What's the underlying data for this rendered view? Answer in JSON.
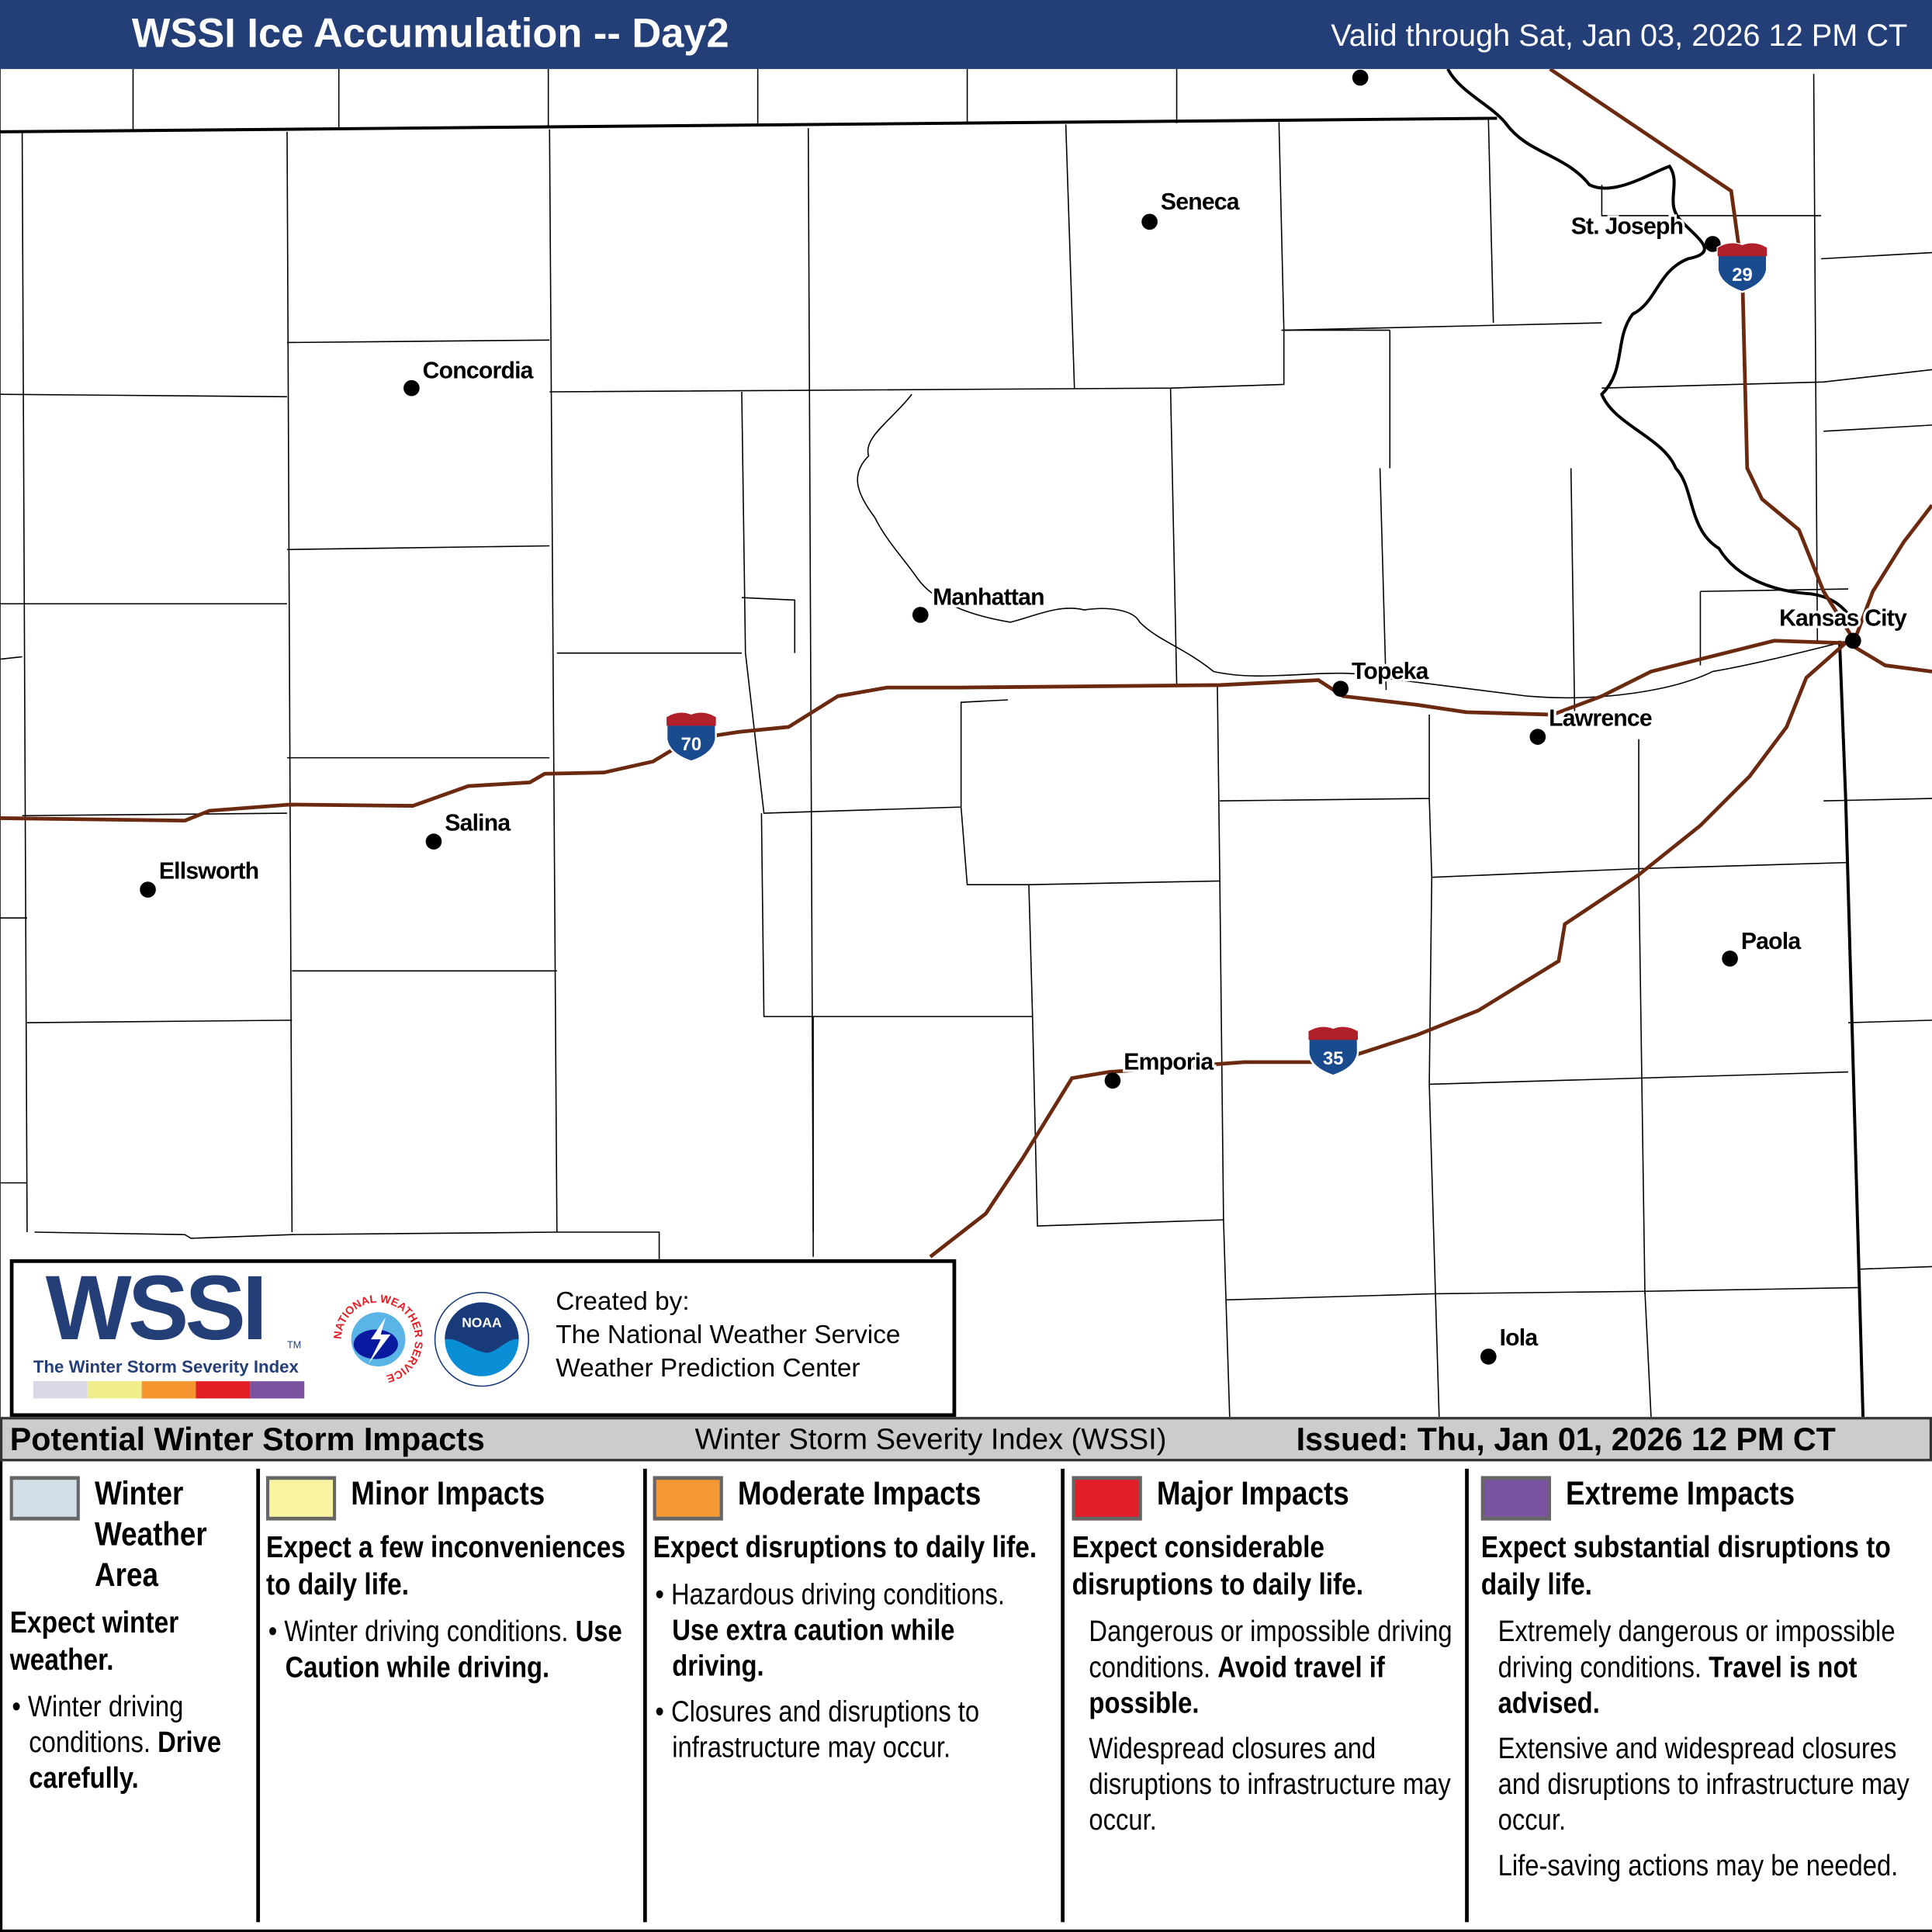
{
  "header": {
    "title": "WSSI Ice Accumulation -- Day2",
    "valid": "Valid through Sat, Jan 03, 2026 12 PM CT",
    "bg_color": "#243f78"
  },
  "map": {
    "cities": [
      {
        "name": "Seneca"
      },
      {
        "name": "St. Joseph"
      },
      {
        "name": "Concordia"
      },
      {
        "name": "Manhattan"
      },
      {
        "name": "Topeka"
      },
      {
        "name": "Kansas City"
      },
      {
        "name": "Lawrence"
      },
      {
        "name": "Salina"
      },
      {
        "name": "Ellsworth"
      },
      {
        "name": "Paola"
      },
      {
        "name": "Emporia"
      },
      {
        "name": "Iola"
      }
    ],
    "interstates": [
      {
        "number": "70"
      },
      {
        "number": "29"
      },
      {
        "number": "35"
      }
    ],
    "interstate_color": "#6b2a10"
  },
  "logo": {
    "wssi": "WSSI",
    "tm": "TM",
    "subtitle": "The Winter Storm Severity Index",
    "bar_colors": [
      "#d8d8e6",
      "#f0ee8a",
      "#f5962e",
      "#e31e25",
      "#7b52a0"
    ],
    "nws_ring_text": "NATIONAL WEATHER SERVICE",
    "noaa_text": "NOAA",
    "created_by": "Created by:",
    "org1": "The National Weather Service",
    "org2": "Weather Prediction Center"
  },
  "legend_bar": {
    "left": "Potential Winter Storm Impacts",
    "middle": "Winter Storm Severity Index (WSSI)",
    "issued": "Issued: Thu, Jan 01, 2026 12 PM CT"
  },
  "legend": [
    {
      "color": "#d3dfe6",
      "title_lines": [
        "Winter",
        "Weather",
        "Area"
      ],
      "headline": "Expect winter weather.",
      "b1_plain": "Winter driving conditions.",
      "b1_bold": "Drive carefully."
    },
    {
      "color": "#f8f4a2",
      "title": "Minor Impacts",
      "headline": "Expect a few inconveniences to daily life.",
      "b1_plain": "Winter driving conditions.",
      "b1_bold": "Use Caution while driving."
    },
    {
      "color": "#f59733",
      "title": "Moderate Impacts",
      "headline": "Expect disruptions to daily life.",
      "b1_plain": "Hazardous driving conditions.",
      "b1_bold": "Use extra caution while driving.",
      "b2": "Closures and disruptions to infrastructure may occur."
    },
    {
      "color": "#e41e26",
      "title": "Major Impacts",
      "headline": "Expect considerable disruptions to daily life.",
      "b1_plain": "Dangerous or impossible driving conditions.",
      "b1_bold": "Avoid travel if possible.",
      "b2": "Widespread closures and disruptions to infrastructure may occur."
    },
    {
      "color": "#7b54a1",
      "title": "Extreme Impacts",
      "headline": "Expect substantial disruptions to daily life.",
      "b1_plain": "Extremely dangerous or impossible driving conditions.",
      "b1_bold": "Travel is not advised.",
      "b2": "Extensive and widespread closures and disruptions to infrastructure may occur.",
      "b3": "Life-saving actions may be needed."
    }
  ]
}
